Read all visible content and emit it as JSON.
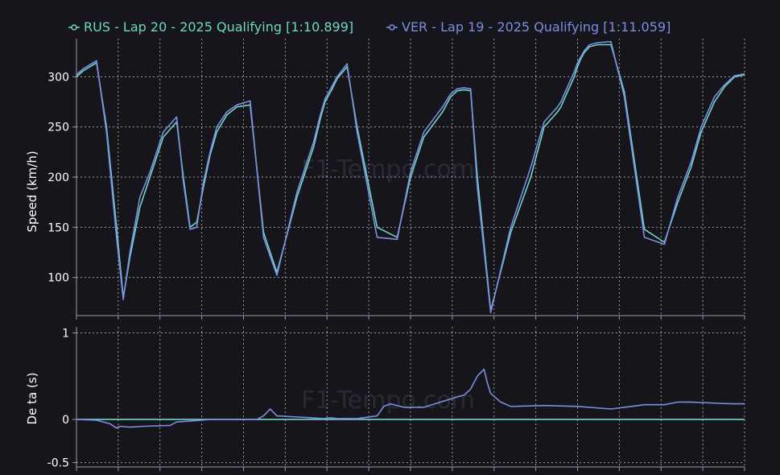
{
  "colors": {
    "background": "#15151b",
    "grid": "#9a9aa6",
    "rus": "#6fd6c6",
    "ver": "#7b8fe0",
    "text": "#ffffff"
  },
  "watermark": "F1-Tempo.com",
  "chart_data": [
    {
      "type": "line",
      "ylabel": "Speed (km/h)",
      "yticks": [
        100,
        150,
        200,
        250,
        300
      ],
      "ylim": [
        62,
        338
      ],
      "xlim": [
        0,
        1
      ],
      "grid": true,
      "legend_position": "top",
      "series": [
        {
          "name": "RUS - Lap 20 - 2025 Qualifying [1:10.899]",
          "color": "#6fd6c6",
          "x": [
            0,
            0.01,
            0.02,
            0.03,
            0.045,
            0.06,
            0.07,
            0.08,
            0.095,
            0.11,
            0.13,
            0.15,
            0.16,
            0.17,
            0.18,
            0.19,
            0.2,
            0.21,
            0.225,
            0.24,
            0.26,
            0.28,
            0.3,
            0.33,
            0.355,
            0.365,
            0.372,
            0.382,
            0.39,
            0.405,
            0.42,
            0.45,
            0.48,
            0.5,
            0.52,
            0.548,
            0.56,
            0.57,
            0.58,
            0.59,
            0.6,
            0.62,
            0.65,
            0.68,
            0.7,
            0.72,
            0.725,
            0.735,
            0.745,
            0.75,
            0.755,
            0.76,
            0.768,
            0.78,
            0.8,
            0.82,
            0.85,
            0.88,
            0.9,
            0.92,
            0.935,
            0.945,
            0.955,
            0.97,
            0.985,
            1
          ],
          "values": [
            300,
            306,
            310,
            314,
            250,
            150,
            80,
            120,
            170,
            200,
            240,
            255,
            200,
            150,
            155,
            190,
            222,
            245,
            262,
            270,
            272,
            145,
            105,
            180,
            230,
            258,
            275,
            287,
            298,
            310,
            250,
            150,
            140,
            200,
            240,
            265,
            280,
            286,
            287,
            286,
            200,
            67,
            145,
            200,
            250,
            265,
            270,
            285,
            300,
            310,
            318,
            324,
            330,
            332,
            332,
            285,
            148,
            135,
            175,
            210,
            245,
            260,
            275,
            290,
            300,
            302
          ]
        },
        {
          "name": "VER - Lap 19 - 2025 Qualifying [1:11.059]",
          "color": "#7b8fe0",
          "x": [
            0,
            0.01,
            0.02,
            0.03,
            0.045,
            0.06,
            0.07,
            0.08,
            0.095,
            0.11,
            0.13,
            0.15,
            0.16,
            0.17,
            0.18,
            0.19,
            0.2,
            0.21,
            0.225,
            0.24,
            0.26,
            0.28,
            0.3,
            0.33,
            0.355,
            0.365,
            0.372,
            0.382,
            0.39,
            0.405,
            0.42,
            0.45,
            0.48,
            0.5,
            0.52,
            0.548,
            0.56,
            0.57,
            0.58,
            0.59,
            0.6,
            0.62,
            0.65,
            0.68,
            0.7,
            0.72,
            0.725,
            0.735,
            0.745,
            0.75,
            0.755,
            0.76,
            0.768,
            0.78,
            0.8,
            0.82,
            0.85,
            0.88,
            0.9,
            0.92,
            0.935,
            0.945,
            0.955,
            0.97,
            0.985,
            1
          ],
          "values": [
            302,
            308,
            312,
            316,
            245,
            140,
            78,
            125,
            180,
            205,
            245,
            260,
            195,
            148,
            150,
            195,
            225,
            250,
            265,
            272,
            276,
            140,
            102,
            185,
            235,
            262,
            278,
            290,
            300,
            313,
            245,
            140,
            138,
            205,
            245,
            270,
            283,
            288,
            289,
            288,
            190,
            65,
            150,
            210,
            255,
            270,
            275,
            290,
            305,
            314,
            320,
            326,
            332,
            334,
            335,
            280,
            140,
            133,
            180,
            215,
            250,
            265,
            280,
            292,
            301,
            303
          ]
        }
      ]
    },
    {
      "type": "line",
      "ylabel": "De ta (s)",
      "yticks": [
        -0.5,
        0,
        1
      ],
      "ylim": [
        -0.55,
        1.07
      ],
      "xlim": [
        0,
        1
      ],
      "grid": true,
      "series": [
        {
          "color": "#6fd6c6",
          "x": [
            0,
            1
          ],
          "values": [
            0,
            0
          ]
        },
        {
          "color": "#7b8fe0",
          "x": [
            0,
            0.03,
            0.05,
            0.06,
            0.065,
            0.08,
            0.1,
            0.14,
            0.15,
            0.17,
            0.2,
            0.24,
            0.27,
            0.28,
            0.29,
            0.3,
            0.35,
            0.37,
            0.38,
            0.39,
            0.42,
            0.45,
            0.46,
            0.47,
            0.49,
            0.52,
            0.57,
            0.58,
            0.59,
            0.6,
            0.61,
            0.615,
            0.62,
            0.635,
            0.65,
            0.7,
            0.75,
            0.8,
            0.82,
            0.85,
            0.88,
            0.9,
            0.92,
            0.95,
            0.98,
            1
          ],
          "values": [
            0,
            -0.01,
            -0.05,
            -0.1,
            -0.08,
            -0.09,
            -0.08,
            -0.07,
            -0.03,
            -0.02,
            0,
            0,
            0,
            0.04,
            0.12,
            0.04,
            0.02,
            0.01,
            0.02,
            0.01,
            0.01,
            0.04,
            0.15,
            0.18,
            0.14,
            0.14,
            0.26,
            0.28,
            0.35,
            0.5,
            0.58,
            0.42,
            0.3,
            0.2,
            0.15,
            0.16,
            0.15,
            0.12,
            0.14,
            0.17,
            0.17,
            0.2,
            0.2,
            0.19,
            0.18,
            0.18
          ]
        }
      ]
    }
  ]
}
